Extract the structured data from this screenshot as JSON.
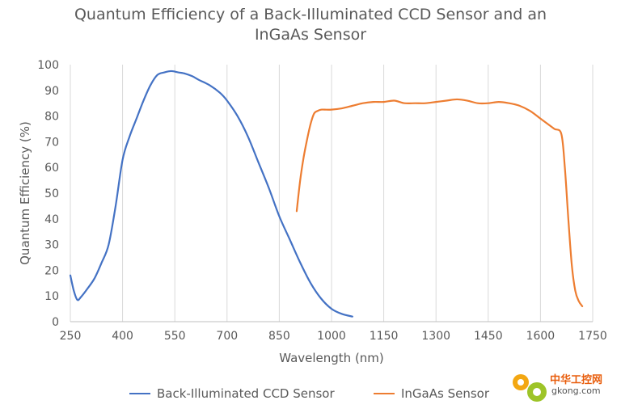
{
  "chart_data": {
    "type": "line",
    "title_line1": "Quantum Efficiency of a Back-Illuminated CCD Sensor and an",
    "title_line2": "InGaAs Sensor",
    "xlabel": "Wavelength (nm)",
    "ylabel": "Quantum Efficiency (%)",
    "xlim": [
      250,
      1750
    ],
    "ylim": [
      0,
      100
    ],
    "xticks": [
      250,
      400,
      550,
      700,
      850,
      1000,
      1150,
      1300,
      1450,
      1600,
      1750
    ],
    "yticks": [
      0,
      10,
      20,
      30,
      40,
      50,
      60,
      70,
      80,
      90,
      100
    ],
    "grid": "vertical",
    "legend_position": "bottom",
    "series": [
      {
        "name": "Back-Illuminated CCD Sensor",
        "color": "#4472c4",
        "x": [
          250,
          260,
          270,
          280,
          300,
          320,
          340,
          360,
          380,
          400,
          420,
          440,
          460,
          480,
          500,
          520,
          540,
          560,
          580,
          600,
          620,
          650,
          680,
          700,
          730,
          760,
          790,
          820,
          850,
          880,
          910,
          940,
          970,
          1000,
          1030,
          1060
        ],
        "y": [
          18,
          12,
          8.5,
          9.5,
          13,
          17,
          23,
          30,
          45,
          63,
          72,
          79,
          86,
          92,
          96,
          97,
          97.5,
          97,
          96.5,
          95.5,
          94,
          92,
          89,
          86,
          80,
          72,
          62,
          52,
          41,
          32,
          23,
          15,
          9,
          5,
          3,
          2
        ]
      },
      {
        "name": "InGaAs Sensor",
        "color": "#ed7d31",
        "x": [
          900,
          910,
          920,
          930,
          940,
          950,
          960,
          970,
          980,
          1000,
          1030,
          1060,
          1090,
          1120,
          1150,
          1180,
          1210,
          1240,
          1270,
          1300,
          1330,
          1360,
          1390,
          1420,
          1450,
          1480,
          1510,
          1540,
          1570,
          1600,
          1620,
          1640,
          1660,
          1670,
          1680,
          1690,
          1700,
          1710,
          1720
        ],
        "y": [
          43,
          55,
          64,
          71,
          77,
          81,
          82,
          82.5,
          82.5,
          82.5,
          83,
          84,
          85,
          85.5,
          85.5,
          86,
          85,
          85,
          85,
          85.5,
          86,
          86.5,
          86,
          85,
          85,
          85.5,
          85,
          84,
          82,
          79,
          77,
          75,
          73,
          60,
          40,
          22,
          12,
          8,
          6
        ]
      }
    ]
  },
  "watermark": {
    "text_line1": "中华工控网",
    "text_line2": "gkong.com"
  }
}
